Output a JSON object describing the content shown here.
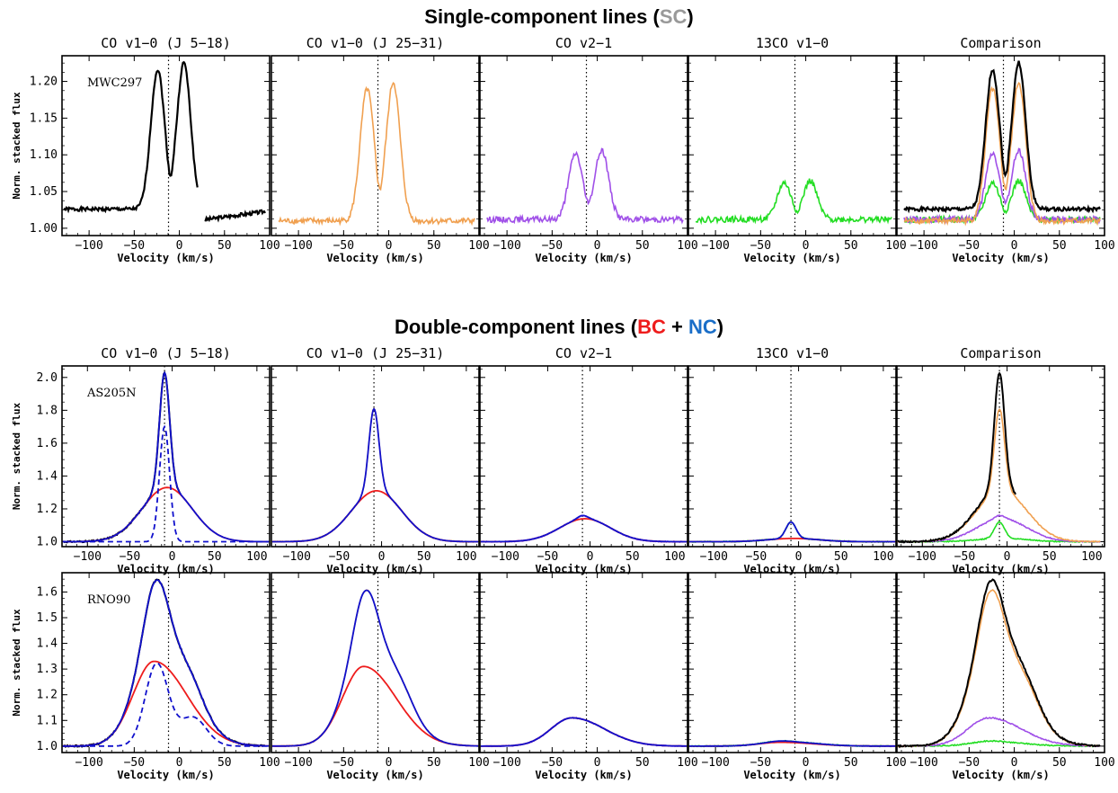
{
  "figure": {
    "section1_prefix": "Single-component lines (",
    "section1_tag": "SC",
    "section1_suffix": ")",
    "section2_prefix": "Double-component lines (",
    "section2_bc": "BC",
    "section2_plus": " + ",
    "section2_nc": "NC",
    "section2_suffix": ")",
    "column_titles": [
      "CO v1−0 (J 5−18)",
      "CO v1−0 (J 25−31)",
      "CO v2−1",
      "13CO v1−0",
      "Comparison"
    ],
    "xlabel": "Velocity (km/s)",
    "ylabel": "Norm. stacked flux",
    "colors": {
      "black": "#000000",
      "orange": "#f0a050",
      "purple": "#a050e8",
      "green": "#22dd22",
      "blue": "#1010cc",
      "red": "#ee1c1c",
      "gray": "#999999",
      "nc_blue": "#1a6ec8"
    }
  },
  "chart_data": [
    {
      "type": "line",
      "title": "MWC297",
      "xlabel": "Velocity (km/s)",
      "ylabel": "Norm. stacked flux",
      "xlim": [
        -130,
        100
      ],
      "ylim": [
        0.99,
        1.235
      ],
      "xticks": [
        -100,
        -50,
        0,
        50,
        100
      ],
      "yticks": [
        1.0,
        1.05,
        1.1,
        1.15,
        1.2
      ],
      "ytick_labels": [
        "1.00",
        "1.05",
        "1.10",
        "1.15",
        "1.20"
      ],
      "stellar_velocity": -12,
      "line_center": -10,
      "continuum": [
        1.026,
        1.01,
        1.012,
        1.012
      ],
      "peaks": [
        {
          "name": "CO v1-0 (J 5-18)",
          "color": "black",
          "amp": 0.19,
          "dip": 0.16,
          "gap": [
            -2,
            30
          ]
        },
        {
          "name": "CO v1-0 (J 25-31)",
          "color": "orange",
          "amp": 0.18,
          "dip": 0.12
        },
        {
          "name": "CO v2-1",
          "color": "purple",
          "amp": 0.09,
          "dip": 0.06
        },
        {
          "name": "13CO v1-0",
          "color": "green",
          "amp": 0.05,
          "dip": 0.03
        }
      ]
    },
    {
      "type": "line",
      "title": "AS205N",
      "xlabel": "Velocity (km/s)",
      "ylabel": "Norm. stacked flux",
      "xlim": [
        -130,
        115
      ],
      "ylim": [
        0.97,
        2.07
      ],
      "xticks": [
        -100,
        -50,
        0,
        50,
        100
      ],
      "yticks": [
        1.0,
        1.2,
        1.4,
        1.6,
        1.8,
        2.0
      ],
      "ytick_labels": [
        "1.0",
        "1.2",
        "1.4",
        "1.6",
        "1.8",
        "2.0"
      ],
      "stellar_velocity": -9,
      "components": {
        "broad": {
          "center": -6,
          "fwhm": 70
        },
        "narrow": {
          "center": -9,
          "fwhm": 14
        }
      },
      "amplitudes": [
        {
          "name": "CO v1-0 (J 5-18)",
          "color": "black",
          "broad": 0.33,
          "narrow": 0.7,
          "total_peak": 2.04,
          "data_ends_at": 10
        },
        {
          "name": "CO v1-0 (J 25-31)",
          "color": "orange",
          "broad": 0.31,
          "narrow": 0.5,
          "total_peak": 1.81
        },
        {
          "name": "CO v2-1",
          "color": "purple",
          "broad": 0.14,
          "narrow": 0.02,
          "total_peak": 1.16
        },
        {
          "name": "13CO v1-0",
          "color": "green",
          "broad": 0.02,
          "narrow": 0.1,
          "total_peak": 1.12
        }
      ]
    },
    {
      "type": "line",
      "title": "RNO90",
      "xlabel": "Velocity (km/s)",
      "ylabel": "Norm. stacked flux",
      "xlim": [
        -130,
        100
      ],
      "ylim": [
        0.975,
        1.675
      ],
      "xticks": [
        -100,
        -50,
        0,
        50,
        100
      ],
      "yticks": [
        1.0,
        1.1,
        1.2,
        1.3,
        1.4,
        1.5,
        1.6
      ],
      "ytick_labels": [
        "1.0",
        "1.1",
        "1.2",
        "1.3",
        "1.4",
        "1.5",
        "1.6"
      ],
      "stellar_velocity": -12,
      "amplitudes": [
        {
          "name": "CO v1-0 (J 5-18)",
          "color": "black",
          "total_peak": 1.65,
          "broad_peak": 1.33,
          "narrow_peak": 1.32
        },
        {
          "name": "CO v1-0 (J 25-31)",
          "color": "orange",
          "total_peak": 1.61,
          "broad_peak": 1.31
        },
        {
          "name": "CO v2-1",
          "color": "purple",
          "total_peak": 1.11,
          "broad_peak": 1.11
        },
        {
          "name": "13CO v1-0",
          "color": "green",
          "total_peak": 1.02,
          "broad_peak": 1.015
        }
      ]
    }
  ]
}
